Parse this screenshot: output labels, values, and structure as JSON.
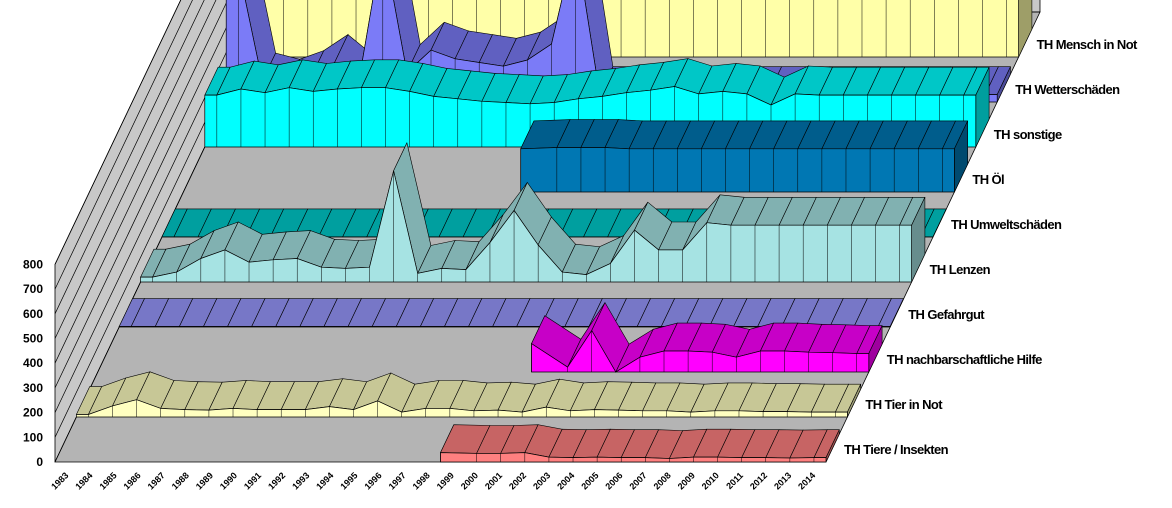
{
  "chart_data": {
    "type": "area",
    "title": "",
    "xlabel": "",
    "ylabel": "",
    "ylim": [
      0,
      800
    ],
    "yticks": [
      "0",
      "100",
      "200",
      "300",
      "400",
      "500",
      "600",
      "700",
      "800"
    ],
    "categories": [
      "1983",
      "1984",
      "1985",
      "1986",
      "1987",
      "1988",
      "1989",
      "1990",
      "1991",
      "1992",
      "1993",
      "1994",
      "1995",
      "1996",
      "1997",
      "1998",
      "1999",
      "2000",
      "2001",
      "2002",
      "2003",
      "2004",
      "2005",
      "2006",
      "2007",
      "2008",
      "2009",
      "2010",
      "2011",
      "2012",
      "2013",
      "2014"
    ],
    "category_labels": [
      "1983",
      "1984",
      "1985",
      "1986",
      "1987",
      "1988",
      "1989",
      "1990",
      "1991",
      "1992",
      "1993",
      "1994",
      "1995",
      "1996",
      "1997",
      "1998",
      "1999",
      "2000",
      "2001",
      "2002",
      "2003",
      "2004",
      "2005",
      "2006",
      "2007",
      "2008",
      "2009",
      "2010",
      "2011",
      "2012",
      "2013",
      "2014"
    ],
    "grid": true,
    "legend": "series labels along right depth axis",
    "series": [
      {
        "name": "TH Tiere / Insekten",
        "color": "#ff8080",
        "start": 16,
        "values": [
          0,
          0,
          0,
          0,
          0,
          0,
          0,
          0,
          0,
          0,
          0,
          0,
          0,
          0,
          0,
          0,
          38,
          35,
          35,
          38,
          20,
          18,
          20,
          18,
          18,
          14,
          20,
          20,
          18,
          18,
          16,
          18
        ]
      },
      {
        "name": "TH Tier in Not",
        "color": "#ffffc0",
        "start": 0,
        "values": [
          10,
          45,
          70,
          35,
          30,
          28,
          35,
          30,
          30,
          30,
          42,
          30,
          65,
          20,
          35,
          35,
          25,
          28,
          20,
          40,
          25,
          30,
          28,
          25,
          25,
          20,
          25,
          25,
          22,
          22,
          20,
          20
        ]
      },
      {
        "name": "TH nachbarschaftliche Hilfe",
        "color": "#ff00ff",
        "start": 18,
        "values": [
          0,
          0,
          0,
          0,
          0,
          0,
          0,
          0,
          0,
          0,
          0,
          0,
          0,
          0,
          0,
          0,
          0,
          0,
          115,
          20,
          168,
          0,
          60,
          85,
          85,
          80,
          60,
          85,
          85,
          80,
          78,
          75
        ]
      },
      {
        "name": "TH Gefahrgut",
        "color": "#9999ff",
        "start": 0,
        "values": [
          2,
          2,
          2,
          2,
          2,
          2,
          2,
          2,
          2,
          2,
          2,
          2,
          2,
          2,
          2,
          2,
          2,
          2,
          2,
          2,
          2,
          2,
          2,
          2,
          2,
          2,
          2,
          2,
          2,
          2,
          2,
          2
        ]
      },
      {
        "name": "TH Lenzen",
        "color": "#a6e3e3",
        "start": 0,
        "values": [
          20,
          40,
          95,
          130,
          80,
          90,
          95,
          60,
          55,
          60,
          450,
          35,
          55,
          50,
          160,
          290,
          150,
          40,
          30,
          75,
          210,
          130,
          130,
          240,
          230,
          230,
          230,
          230,
          230,
          230,
          230,
          230
        ]
      },
      {
        "name": "TH Umweltschäden",
        "color": "#00cccc",
        "start": 0,
        "values": [
          1,
          1,
          1,
          1,
          1,
          1,
          1,
          1,
          1,
          1,
          1,
          1,
          1,
          1,
          1,
          1,
          1,
          1,
          1,
          1,
          1,
          1,
          1,
          1,
          1,
          1,
          1,
          1,
          1,
          1,
          1,
          1
        ]
      },
      {
        "name": "TH Öl",
        "color": "#0077b3",
        "start": 14,
        "values": [
          0,
          0,
          0,
          0,
          0,
          0,
          0,
          0,
          0,
          0,
          0,
          0,
          0,
          0,
          175,
          180,
          180,
          180,
          175,
          175,
          175,
          175,
          175,
          175,
          175,
          175,
          175,
          175,
          175,
          175,
          175,
          175
        ]
      },
      {
        "name": "TH sonstige",
        "color": "#00ffff",
        "start": 0,
        "values": [
          210,
          235,
          220,
          240,
          225,
          235,
          240,
          240,
          225,
          205,
          195,
          185,
          180,
          175,
          180,
          195,
          205,
          220,
          230,
          245,
          215,
          225,
          215,
          170,
          215,
          210,
          210,
          210,
          210,
          210,
          210,
          210
        ]
      },
      {
        "name": "TH Wetterschäden",
        "color": "#7b7bf7",
        "start": 0,
        "values": [
          550,
          85,
          60,
          95,
          160,
          80,
          650,
          120,
          210,
          175,
          160,
          145,
          170,
          235,
          650,
          30,
          30,
          30,
          30,
          30,
          30,
          30,
          30,
          30,
          30,
          30,
          30,
          30,
          30,
          30,
          30,
          30
        ]
      },
      {
        "name": "TH Mensch in Not",
        "color": "#ffffa8",
        "start": 0,
        "values": [
          255,
          250,
          275,
          260,
          310,
          305,
          310,
          300,
          315,
          290,
          255,
          300,
          270,
          310,
          345,
          355,
          370,
          385,
          390,
          420,
          420,
          440,
          440,
          445,
          460,
          465,
          470,
          480,
          490,
          495,
          500,
          505
        ]
      }
    ]
  }
}
